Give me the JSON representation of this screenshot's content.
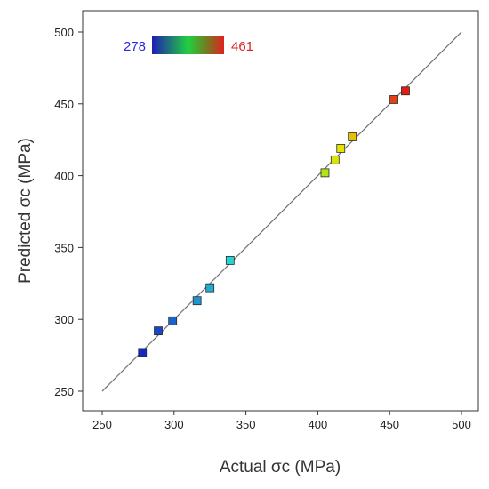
{
  "chart_data": {
    "type": "scatter",
    "xlabel": "Actual σc (MPa)",
    "ylabel": "Predicted σc (MPa)",
    "xlim": [
      250,
      500
    ],
    "ylim": [
      250,
      500
    ],
    "x_ticks": [
      "250",
      "300",
      "350",
      "400",
      "450",
      "500"
    ],
    "y_ticks": [
      "250",
      "300",
      "350",
      "400",
      "450",
      "500"
    ],
    "grid": false,
    "reference_line": {
      "x": [
        250,
        500
      ],
      "y": [
        250,
        500
      ]
    },
    "color_scale": {
      "min_label": "278",
      "max_label": "461",
      "min": 278,
      "max": 461,
      "min_color": "#2a2ae0",
      "max_color": "#e02020"
    },
    "points": [
      {
        "x": 278,
        "y": 277
      },
      {
        "x": 289,
        "y": 292
      },
      {
        "x": 299,
        "y": 299
      },
      {
        "x": 316,
        "y": 313
      },
      {
        "x": 325,
        "y": 322
      },
      {
        "x": 339,
        "y": 341
      },
      {
        "x": 405,
        "y": 402
      },
      {
        "x": 412,
        "y": 411
      },
      {
        "x": 416,
        "y": 419
      },
      {
        "x": 424,
        "y": 427
      },
      {
        "x": 453,
        "y": 453
      },
      {
        "x": 461,
        "y": 459
      }
    ]
  }
}
